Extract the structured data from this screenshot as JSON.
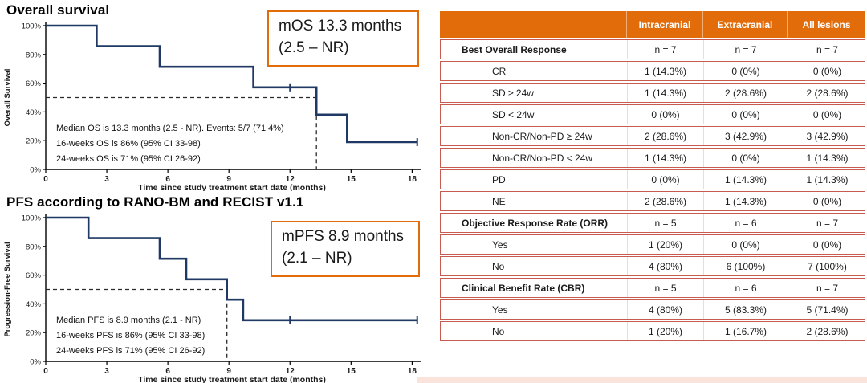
{
  "colors": {
    "curve_navy": "#1f3864",
    "accent_orange": "#e36c0a",
    "table_border": "#c75b50",
    "column_divider": "#f3d9d5",
    "bottom_strip": "#f9e3da"
  },
  "chart_data": [
    {
      "id": "os",
      "type": "line",
      "subtype": "kaplan_meier_step",
      "title": "Overall survival",
      "ylabel": "Overall Survival",
      "xlabel": "Time since study treatment start date (months)",
      "xlim": [
        0,
        18.3
      ],
      "ylim": [
        0,
        100
      ],
      "xticks": [
        0,
        3,
        6,
        9,
        12,
        15,
        18
      ],
      "ytick_labels": [
        "0%",
        "20%",
        "40%",
        "60%",
        "80%",
        "100%"
      ],
      "grid": false,
      "step_points": [
        [
          0,
          100
        ],
        [
          2.5,
          100
        ],
        [
          2.5,
          85.7
        ],
        [
          5.6,
          85.7
        ],
        [
          5.6,
          71.4
        ],
        [
          10.2,
          71.4
        ],
        [
          10.2,
          57.1
        ],
        [
          13.3,
          57.1
        ],
        [
          13.3,
          38.1
        ],
        [
          14.8,
          38.1
        ],
        [
          14.8,
          19
        ],
        [
          18.25,
          19
        ]
      ],
      "censor_marks": [
        [
          12,
          57.1
        ],
        [
          18.25,
          19
        ]
      ],
      "median_line": {
        "x": 13.3,
        "y": 50
      },
      "annotation_box": {
        "line1": "mOS 13.3 months",
        "line2": "(2.5 – NR)"
      },
      "stats_lines": [
        "Median OS is 13.3 months (2.5 - NR). Events: 5/7 (71.4%)",
        "16-weeks OS is 86% (95% CI 33-98)",
        "24-weeks OS is 71% (95% CI 26-92)"
      ]
    },
    {
      "id": "pfs",
      "type": "line",
      "subtype": "kaplan_meier_step",
      "title": "PFS according to RANO-BM and RECIST v1.1",
      "ylabel": "Progression-Free Survival",
      "xlabel": "Time since study treatment start date (months)",
      "xlim": [
        0,
        18.3
      ],
      "ylim": [
        0,
        100
      ],
      "xticks": [
        0,
        3,
        6,
        9,
        12,
        15,
        18
      ],
      "ytick_labels": [
        "0%",
        "20%",
        "40%",
        "60%",
        "80%",
        "100%"
      ],
      "grid": false,
      "step_points": [
        [
          0,
          100
        ],
        [
          2.1,
          100
        ],
        [
          2.1,
          85.7
        ],
        [
          5.6,
          85.7
        ],
        [
          5.6,
          71.4
        ],
        [
          6.9,
          71.4
        ],
        [
          6.9,
          57.1
        ],
        [
          8.9,
          57.1
        ],
        [
          8.9,
          42.9
        ],
        [
          9.7,
          42.9
        ],
        [
          9.7,
          28.6
        ],
        [
          18.25,
          28.6
        ]
      ],
      "censor_marks": [
        [
          12,
          28.6
        ],
        [
          18.25,
          28.6
        ]
      ],
      "median_line": {
        "x": 8.9,
        "y": 50
      },
      "annotation_box": {
        "line1": "mPFS 8.9 months",
        "line2": "(2.1 – NR)"
      },
      "stats_lines": [
        "Median PFS is 8.9 months (2.1 - NR)",
        "16-weeks PFS is 86% (95% CI 33-98)",
        "24-weeks PFS is 71% (95% CI 26-92)"
      ]
    }
  ],
  "table": {
    "columns": [
      "Intracranial",
      "Extracranial",
      "All lesions"
    ],
    "rows": [
      {
        "label": "Best Overall Response",
        "section": true,
        "values": [
          "n = 7",
          "n = 7",
          "n = 7"
        ]
      },
      {
        "label": "CR",
        "section": false,
        "values": [
          "1 (14.3%)",
          "0 (0%)",
          "0 (0%)"
        ]
      },
      {
        "label": "SD ≥ 24w",
        "section": false,
        "values": [
          "1 (14.3%)",
          "2 (28.6%)",
          "2 (28.6%)"
        ]
      },
      {
        "label": "SD < 24w",
        "section": false,
        "values": [
          "0 (0%)",
          "0 (0%)",
          "0 (0%)"
        ]
      },
      {
        "label": "Non-CR/Non-PD ≥ 24w",
        "section": false,
        "values": [
          "2 (28.6%)",
          "3 (42.9%)",
          "3 (42.9%)"
        ]
      },
      {
        "label": "Non-CR/Non-PD < 24w",
        "section": false,
        "values": [
          "1 (14.3%)",
          "0 (0%)",
          "1 (14.3%)"
        ]
      },
      {
        "label": "PD",
        "section": false,
        "values": [
          "0 (0%)",
          "1 (14.3%)",
          "1 (14.3%)"
        ]
      },
      {
        "label": "NE",
        "section": false,
        "values": [
          "2 (28.6%)",
          "1 (14.3%)",
          "0 (0%)"
        ]
      },
      {
        "label": "Objective Response Rate (ORR)",
        "section": true,
        "values": [
          "n = 5",
          "n = 6",
          "n = 7"
        ]
      },
      {
        "label": "Yes",
        "section": false,
        "values": [
          "1 (20%)",
          "0 (0%)",
          "0 (0%)"
        ]
      },
      {
        "label": "No",
        "section": false,
        "values": [
          "4 (80%)",
          "6 (100%)",
          "7 (100%)"
        ]
      },
      {
        "label": "Clinical Benefit Rate (CBR)",
        "section": true,
        "values": [
          "n = 5",
          "n = 6",
          "n = 7"
        ]
      },
      {
        "label": "Yes",
        "section": false,
        "values": [
          "4 (80%)",
          "5 (83.3%)",
          "5 (71.4%)"
        ]
      },
      {
        "label": "No",
        "section": false,
        "values": [
          "1 (20%)",
          "1 (16.7%)",
          "2 (28.6%)"
        ]
      }
    ]
  }
}
